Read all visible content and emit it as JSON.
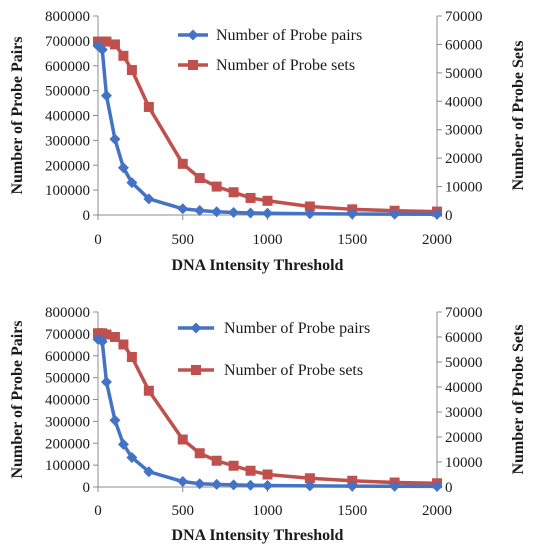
{
  "chart_data": [
    {
      "type": "line",
      "x": [
        0,
        25,
        50,
        100,
        150,
        200,
        300,
        500,
        600,
        700,
        800,
        900,
        1000,
        1250,
        1500,
        1750,
        2000
      ],
      "xticks": [
        "0",
        "500",
        "1000",
        "1500",
        "2000"
      ],
      "xtick_values": [
        0,
        500,
        1000,
        1500,
        2000
      ],
      "xlim": [
        0,
        2000
      ],
      "xlabel": "DNA Intensity Threshold",
      "ylabel": "Number of Probe Pairs",
      "ylim": [
        0,
        800000
      ],
      "yticks": [
        "0",
        "100000",
        "200000",
        "300000",
        "400000",
        "500000",
        "600000",
        "700000",
        "800000"
      ],
      "y2label": "Number of Probe Sets",
      "y2lim": [
        0,
        70000
      ],
      "y2ticks": [
        "0",
        "10000",
        "20000",
        "30000",
        "40000",
        "50000",
        "60000",
        "70000"
      ],
      "legend_placement": "top-right",
      "series": [
        {
          "name": "Number of Probe pairs",
          "axis": "left",
          "color": "#4472c4",
          "marker": "diamond",
          "values": [
            680000,
            665000,
            480000,
            305000,
            190000,
            130000,
            65000,
            25000,
            18000,
            13000,
            10000,
            8000,
            7000,
            5000,
            4000,
            3500,
            3000
          ]
        },
        {
          "name": "Number of Probe sets",
          "axis": "right",
          "color": "#c0504d",
          "marker": "square",
          "values": [
            61000,
            61000,
            61000,
            60000,
            56000,
            51000,
            38000,
            18000,
            13000,
            10000,
            8000,
            6000,
            5000,
            3000,
            2000,
            1500,
            1200
          ]
        }
      ]
    },
    {
      "type": "line",
      "x": [
        0,
        25,
        50,
        100,
        150,
        200,
        300,
        500,
        600,
        700,
        800,
        900,
        1000,
        1250,
        1500,
        1750,
        2000
      ],
      "xticks": [
        "0",
        "500",
        "1000",
        "1500",
        "2000"
      ],
      "xtick_values": [
        0,
        500,
        1000,
        1500,
        2000
      ],
      "xlim": [
        0,
        2000
      ],
      "xlabel": "DNA Intensity Threshold",
      "ylabel": "Number of Probe Pairs",
      "ylim": [
        0,
        800000
      ],
      "yticks": [
        "0",
        "100000",
        "200000",
        "300000",
        "400000",
        "500000",
        "600000",
        "700000",
        "800000"
      ],
      "y2label": "Number of Probe Sets",
      "y2lim": [
        0,
        70000
      ],
      "y2ticks": [
        "0",
        "10000",
        "20000",
        "30000",
        "40000",
        "50000",
        "60000",
        "70000"
      ],
      "legend_placement": "top-right",
      "series": [
        {
          "name": "Number of Probe pairs",
          "axis": "left",
          "color": "#4472c4",
          "marker": "diamond",
          "values": [
            675000,
            665000,
            480000,
            305000,
            195000,
            135000,
            70000,
            25000,
            15000,
            12000,
            10000,
            8000,
            7000,
            5000,
            4000,
            3500,
            3000
          ]
        },
        {
          "name": "Number of Probe sets",
          "axis": "right",
          "color": "#c0504d",
          "marker": "square",
          "values": [
            61500,
            61500,
            61000,
            60000,
            57000,
            52000,
            38500,
            19000,
            13500,
            10500,
            8500,
            6500,
            5000,
            3500,
            2500,
            1800,
            1500
          ]
        }
      ]
    }
  ]
}
